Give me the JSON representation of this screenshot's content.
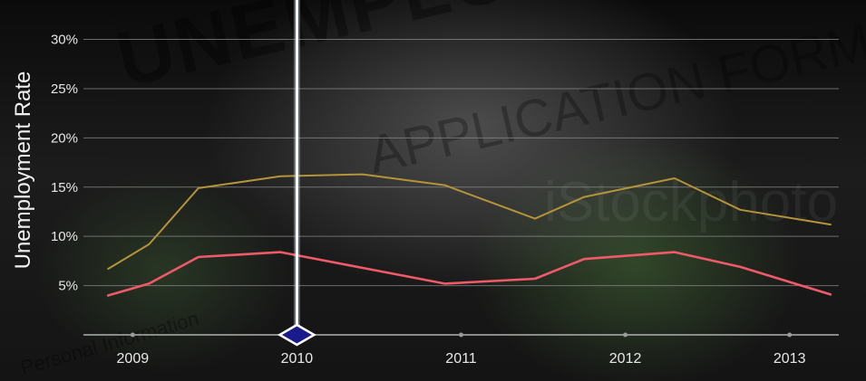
{
  "background": {
    "photo_text_main": "UNEMPLOYMENT BE",
    "photo_text_sub": "APPLICATION FORM",
    "watermark": "iStockphoto",
    "photo_text_small": "Personal Information"
  },
  "colors": {
    "series_youth": "#b5933a",
    "series_overall": "#ef5a68",
    "cursor": "#ffffff",
    "marker": "#1a1a8c",
    "grid": "#8a8a8a"
  },
  "chart_data": {
    "type": "line",
    "title": "",
    "xlabel": "",
    "ylabel": "Unemployment Rate",
    "xlim": [
      2008.7,
      2013.3
    ],
    "ylim": [
      0,
      34
    ],
    "yticks": [
      5,
      10,
      15,
      20,
      25,
      30
    ],
    "ytick_labels": [
      "5%",
      "10%",
      "15%",
      "20%",
      "25%",
      "30%"
    ],
    "xticks": [
      2009,
      2010,
      2011,
      2012,
      2013
    ],
    "xtick_labels": [
      "2009",
      "2010",
      "2011",
      "2012",
      "2013"
    ],
    "grid": true,
    "cursor_x": 2010,
    "series": [
      {
        "x": [
          2008.85,
          2009.1,
          2009.4,
          2009.9,
          2010.4,
          2010.9,
          2011.45,
          2011.75,
          2012.3,
          2012.7,
          2013.25
        ],
        "values": [
          6.7,
          9.2,
          14.9,
          16.1,
          16.3,
          15.2,
          11.8,
          14.0,
          15.9,
          12.7,
          11.2
        ]
      },
      {
        "x": [
          2008.85,
          2009.1,
          2009.4,
          2009.9,
          2010.4,
          2010.9,
          2011.45,
          2011.75,
          2012.3,
          2012.7,
          2013.25
        ],
        "values": [
          4.0,
          5.2,
          7.9,
          8.4,
          6.8,
          5.2,
          5.7,
          7.7,
          8.4,
          6.9,
          4.1
        ]
      }
    ]
  }
}
